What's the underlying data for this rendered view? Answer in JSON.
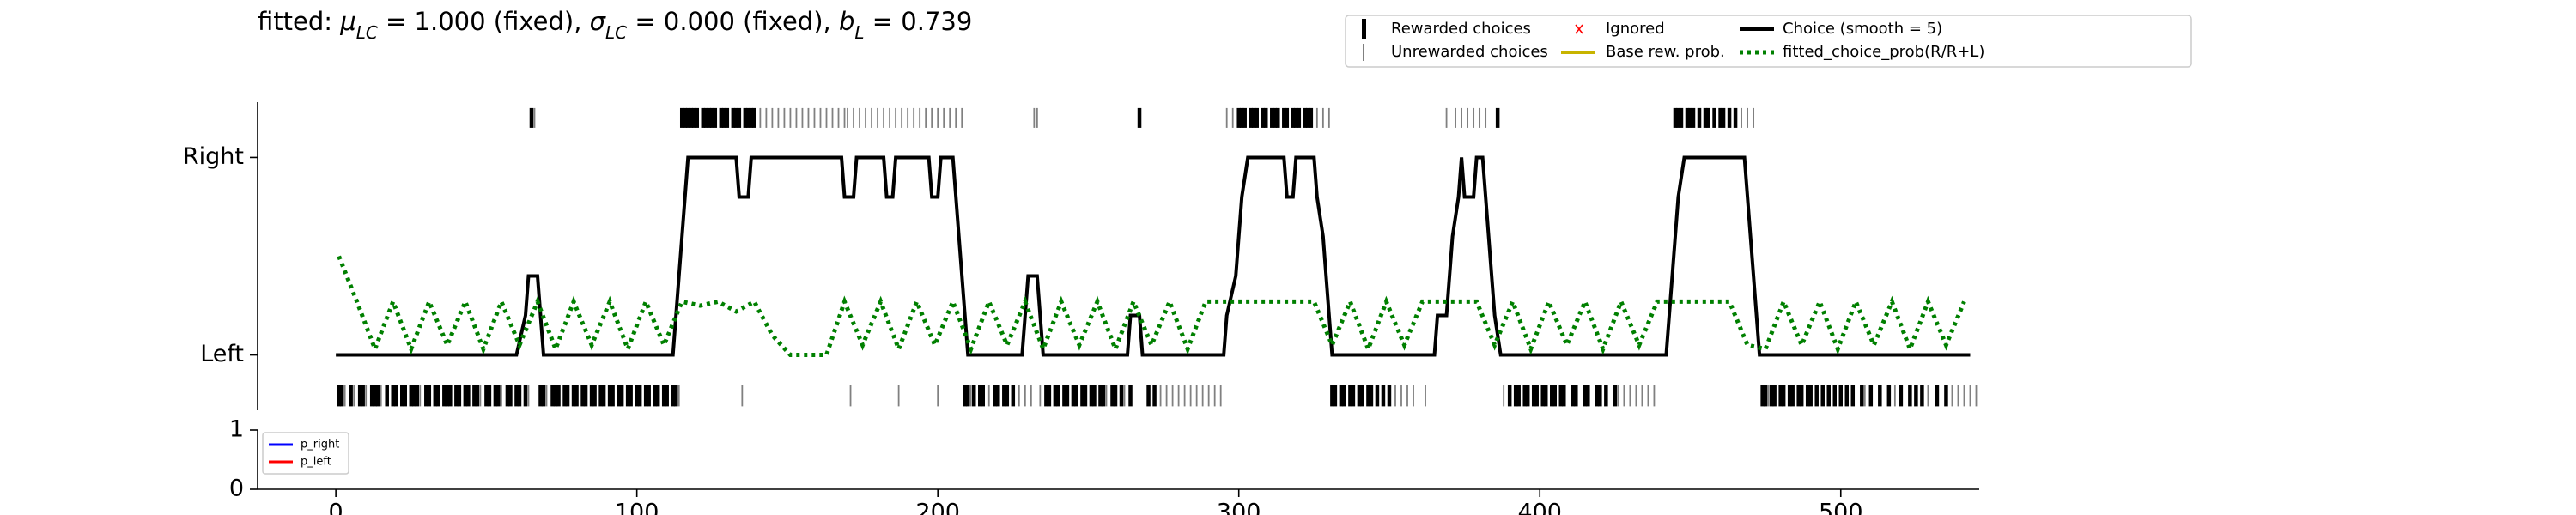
{
  "chart_data": [
    {
      "type": "line",
      "title": [
        {
          "text": "fitted: ",
          "sub": false
        },
        {
          "text": "μ",
          "sub": false,
          "italic": true
        },
        {
          "text": "LC",
          "sub": true,
          "italic": true
        },
        {
          "text": " = 1.000 (fixed), ",
          "sub": false
        },
        {
          "text": "σ",
          "sub": false,
          "italic": true
        },
        {
          "text": "LC",
          "sub": true,
          "italic": true
        },
        {
          "text": " = 0.000 (fixed), ",
          "sub": false
        },
        {
          "text": "b",
          "sub": false,
          "italic": true
        },
        {
          "text": "L",
          "sub": true,
          "italic": true
        },
        {
          "text": " = 0.739",
          "sub": false
        }
      ],
      "xlim": [
        -26,
        546
      ],
      "ylim": [
        -0.28,
        1.28
      ],
      "yticks": [
        {
          "value": 0,
          "label": "Left"
        },
        {
          "value": 1,
          "label": "Right"
        }
      ],
      "legend": "upper right",
      "series": [
        {
          "name": "Rewarded choices",
          "color": "#000000",
          "style": "raster-thick",
          "right_x": [
            65,
            115,
            116,
            117,
            118,
            119,
            120,
            122,
            123,
            124,
            125,
            126,
            128,
            129,
            130,
            132,
            133,
            134,
            136,
            137,
            138,
            139,
            267,
            300,
            301,
            302,
            304,
            305,
            306,
            308,
            309,
            311,
            312,
            313,
            315,
            316,
            318,
            319,
            320,
            322,
            323,
            324,
            386,
            445,
            446,
            447,
            449,
            450,
            451,
            453,
            455,
            456,
            458,
            460,
            461,
            463,
            465
          ],
          "left_x": [
            1,
            2,
            5,
            8,
            9,
            12,
            13,
            14,
            17,
            19,
            20,
            22,
            23,
            25,
            26,
            27,
            30,
            31,
            33,
            34,
            36,
            37,
            38,
            40,
            41,
            43,
            44,
            46,
            47,
            50,
            51,
            53,
            54,
            57,
            58,
            60,
            61,
            63,
            68,
            69,
            72,
            73,
            74,
            76,
            77,
            79,
            80,
            82,
            83,
            85,
            86,
            88,
            89,
            91,
            92,
            94,
            95,
            97,
            98,
            100,
            101,
            103,
            104,
            106,
            107,
            109,
            110,
            112,
            113,
            209,
            210,
            212,
            214,
            215,
            219,
            220,
            222,
            223,
            225,
            236,
            237,
            239,
            240,
            242,
            243,
            245,
            246,
            248,
            249,
            251,
            252,
            254,
            255,
            258,
            259,
            261,
            264,
            270,
            272,
            331,
            332,
            334,
            335,
            337,
            338,
            340,
            341,
            343,
            344,
            346,
            348,
            350,
            390,
            392,
            393,
            395,
            396,
            398,
            399,
            401,
            402,
            404,
            405,
            407,
            408,
            411,
            412,
            415,
            416,
            419,
            420,
            422,
            425,
            474,
            475,
            477,
            478,
            480,
            481,
            483,
            484,
            486,
            487,
            489,
            490,
            492,
            494,
            496,
            498,
            500,
            502,
            504,
            507,
            510,
            513,
            516,
            520,
            523,
            525,
            527,
            532,
            535
          ]
        },
        {
          "name": "Unrewarded choices",
          "color": "#808080",
          "style": "raster-thin",
          "right_x": [
            66,
            141,
            143,
            145,
            147,
            149,
            151,
            153,
            155,
            157,
            159,
            161,
            163,
            165,
            167,
            169,
            170,
            172,
            174,
            176,
            178,
            180,
            182,
            184,
            186,
            188,
            190,
            192,
            194,
            196,
            198,
            200,
            202,
            204,
            206,
            208,
            232,
            233,
            296,
            298,
            326,
            328,
            330,
            369,
            372,
            374,
            376,
            378,
            380,
            382,
            467,
            469,
            471
          ],
          "left_x": [
            3,
            6,
            10,
            15,
            28,
            48,
            55,
            64,
            70,
            114,
            135,
            171,
            187,
            200,
            211,
            217,
            227,
            229,
            231,
            234,
            256,
            262,
            274,
            276,
            278,
            280,
            282,
            284,
            286,
            288,
            290,
            292,
            294,
            352,
            354,
            356,
            358,
            362,
            388,
            426,
            428,
            430,
            432,
            434,
            436,
            438,
            476,
            508,
            518,
            529,
            537,
            539,
            541,
            543,
            545
          ]
        },
        {
          "name": "Ignored",
          "color": "#ff0000",
          "style": "x-marker"
        },
        {
          "name": "Base rew. prob.",
          "color": "#c8b400",
          "style": "solid"
        },
        {
          "name": "Choice (smooth = 5)",
          "color": "#000000",
          "style": "solid",
          "x": [
            0,
            60,
            63,
            64,
            67,
            68,
            69,
            112,
            113,
            114,
            115,
            116,
            117,
            133,
            134,
            137,
            138,
            168,
            169,
            172,
            173,
            182,
            183,
            185,
            186,
            197,
            198,
            200,
            201,
            205,
            206,
            207,
            208,
            209,
            210,
            228,
            229,
            230,
            233,
            234,
            235,
            263,
            264,
            267,
            268,
            295,
            296,
            299,
            300,
            301,
            303,
            315,
            316,
            318,
            319,
            325,
            326,
            328,
            329,
            330,
            331,
            365,
            366,
            369,
            370,
            371,
            373,
            374,
            375,
            378,
            379,
            381,
            382,
            383,
            384,
            385,
            387,
            442,
            443,
            444,
            445,
            446,
            448,
            468,
            469,
            470,
            471,
            472,
            473,
            543
          ],
          "values": [
            0,
            0,
            0.2,
            0.4,
            0.4,
            0.2,
            0,
            0,
            0.2,
            0.4,
            0.6,
            0.8,
            1,
            1,
            0.8,
            0.8,
            1,
            1,
            0.8,
            0.8,
            1,
            1,
            0.8,
            0.8,
            1,
            1,
            0.8,
            0.8,
            1,
            1,
            0.8,
            0.6,
            0.4,
            0.2,
            0,
            0,
            0.2,
            0.4,
            0.4,
            0.2,
            0,
            0,
            0.2,
            0.2,
            0,
            0,
            0.2,
            0.4,
            0.6,
            0.8,
            1,
            1,
            0.8,
            0.8,
            1,
            1,
            0.8,
            0.6,
            0.4,
            0.2,
            0,
            0,
            0.2,
            0.2,
            0.4,
            0.6,
            0.8,
            1,
            0.8,
            0.8,
            1,
            1,
            0.8,
            0.6,
            0.4,
            0.2,
            0,
            0,
            0.2,
            0.4,
            0.6,
            0.8,
            1,
            1,
            0.8,
            0.6,
            0.4,
            0.2,
            0,
            0
          ]
        },
        {
          "name": "fitted_choice_prob(R/R+L)",
          "color": "#008000",
          "style": "dotted",
          "x": [
            1,
            7,
            13,
            19,
            25,
            31,
            37,
            43,
            49,
            55,
            61,
            67,
            73,
            79,
            85,
            91,
            97,
            103,
            109,
            115,
            121,
            127,
            133,
            139,
            145,
            151,
            157,
            163,
            169,
            175,
            181,
            187,
            193,
            199,
            205,
            211,
            217,
            223,
            229,
            235,
            241,
            247,
            253,
            259,
            265,
            271,
            277,
            283,
            289,
            295,
            301,
            307,
            313,
            319,
            325,
            331,
            337,
            343,
            349,
            355,
            361,
            367,
            373,
            379,
            385,
            391,
            397,
            403,
            409,
            415,
            421,
            427,
            433,
            439,
            445,
            451,
            457,
            463,
            469,
            475,
            481,
            487,
            493,
            499,
            505,
            511,
            517,
            523,
            529,
            535,
            541
          ],
          "values": [
            0.5,
            0.27,
            0.03,
            0.27,
            0.03,
            0.27,
            0.05,
            0.27,
            0.03,
            0.27,
            0.05,
            0.27,
            0.03,
            0.27,
            0.05,
            0.27,
            0.03,
            0.27,
            0.05,
            0.27,
            0.25,
            0.27,
            0.22,
            0.27,
            0.1,
            0,
            0,
            0,
            0.27,
            0.05,
            0.27,
            0.03,
            0.27,
            0.05,
            0.27,
            0.03,
            0.27,
            0.05,
            0.27,
            0.03,
            0.27,
            0.05,
            0.27,
            0.03,
            0.27,
            0.05,
            0.27,
            0.03,
            0.27,
            0.27,
            0.27,
            0.27,
            0.27,
            0.27,
            0.27,
            0.05,
            0.27,
            0.03,
            0.27,
            0.05,
            0.27,
            0.27,
            0.27,
            0.27,
            0.05,
            0.27,
            0.03,
            0.27,
            0.05,
            0.27,
            0.03,
            0.27,
            0.05,
            0.27,
            0.27,
            0.27,
            0.27,
            0.27,
            0.05,
            0.03,
            0.27,
            0.05,
            0.27,
            0.03,
            0.27,
            0.05,
            0.27,
            0.03,
            0.27,
            0.05,
            0.27
          ]
        }
      ]
    },
    {
      "type": "line",
      "xlim": [
        -26,
        546
      ],
      "ylim": [
        0,
        1
      ],
      "yticks": [
        0,
        1
      ],
      "xticks": [
        0,
        100,
        200,
        300,
        400,
        500
      ],
      "legend": "upper left",
      "series": [
        {
          "name": "p_right",
          "color": "#0000ff",
          "style": "solid"
        },
        {
          "name": "p_left",
          "color": "#ff0000",
          "style": "solid"
        }
      ]
    }
  ]
}
